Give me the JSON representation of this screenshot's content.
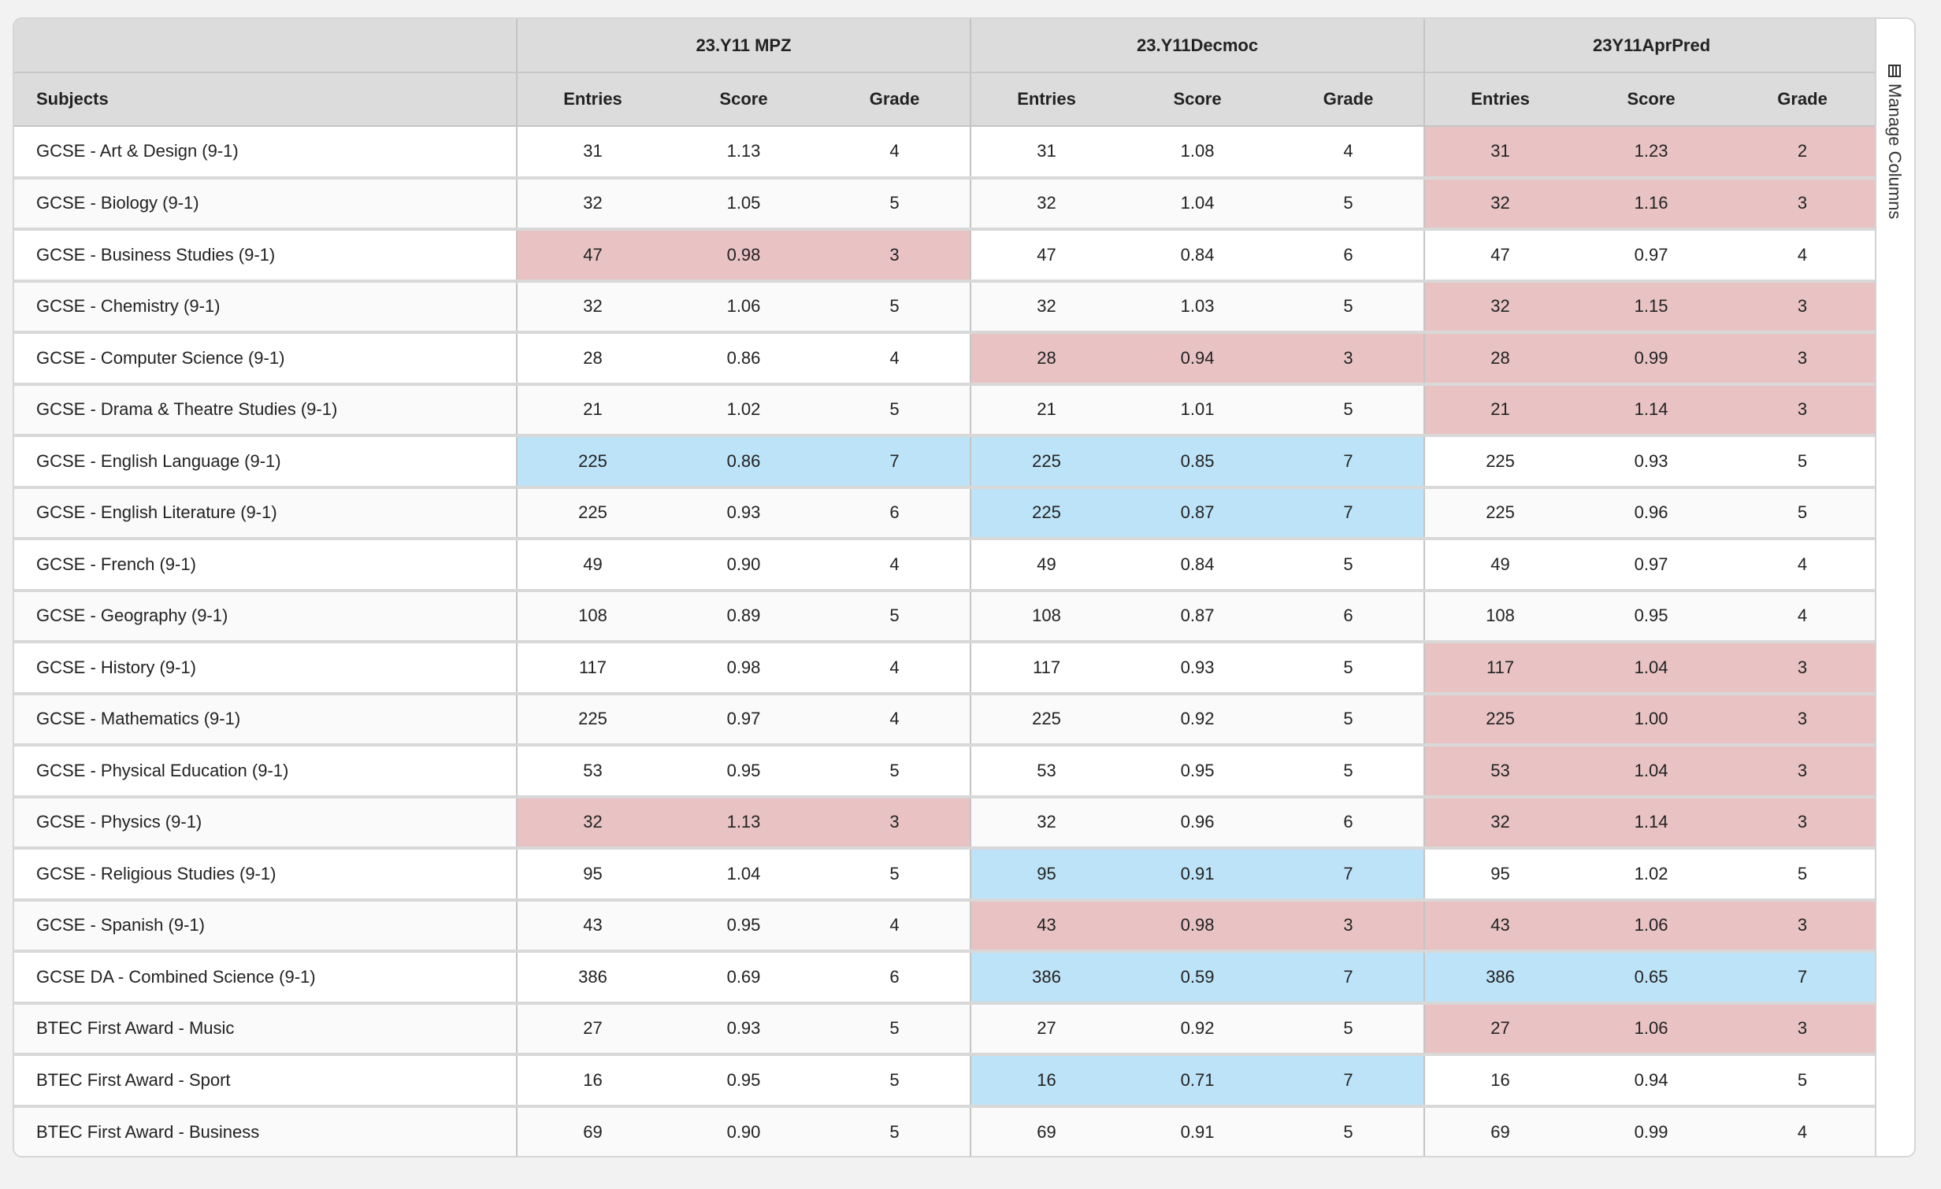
{
  "subjects_header": "Subjects",
  "groups": [
    "23.Y11 MPZ",
    "23.Y11Decmoc",
    "23Y11AprPred"
  ],
  "columns": [
    "Entries",
    "Score",
    "Grade"
  ],
  "side_panel": {
    "manage_columns_label": "Manage Columns",
    "icon": "columns-icon"
  },
  "highlight_colors": {
    "red": "#e9c3c4",
    "blue": "#bde3f8"
  },
  "rows": [
    {
      "subject": "GCSE - Art & Design (9-1)",
      "cells": [
        {
          "entries": "31",
          "score": "1.13",
          "grade": "4",
          "hl": ""
        },
        {
          "entries": "31",
          "score": "1.08",
          "grade": "4",
          "hl": ""
        },
        {
          "entries": "31",
          "score": "1.23",
          "grade": "2",
          "hl": "red"
        }
      ]
    },
    {
      "subject": "GCSE - Biology (9-1)",
      "cells": [
        {
          "entries": "32",
          "score": "1.05",
          "grade": "5",
          "hl": ""
        },
        {
          "entries": "32",
          "score": "1.04",
          "grade": "5",
          "hl": ""
        },
        {
          "entries": "32",
          "score": "1.16",
          "grade": "3",
          "hl": "red"
        }
      ]
    },
    {
      "subject": "GCSE - Business Studies (9-1)",
      "cells": [
        {
          "entries": "47",
          "score": "0.98",
          "grade": "3",
          "hl": "red"
        },
        {
          "entries": "47",
          "score": "0.84",
          "grade": "6",
          "hl": ""
        },
        {
          "entries": "47",
          "score": "0.97",
          "grade": "4",
          "hl": ""
        }
      ]
    },
    {
      "subject": "GCSE - Chemistry (9-1)",
      "cells": [
        {
          "entries": "32",
          "score": "1.06",
          "grade": "5",
          "hl": ""
        },
        {
          "entries": "32",
          "score": "1.03",
          "grade": "5",
          "hl": ""
        },
        {
          "entries": "32",
          "score": "1.15",
          "grade": "3",
          "hl": "red"
        }
      ]
    },
    {
      "subject": "GCSE - Computer Science (9-1)",
      "cells": [
        {
          "entries": "28",
          "score": "0.86",
          "grade": "4",
          "hl": ""
        },
        {
          "entries": "28",
          "score": "0.94",
          "grade": "3",
          "hl": "red"
        },
        {
          "entries": "28",
          "score": "0.99",
          "grade": "3",
          "hl": "red"
        }
      ]
    },
    {
      "subject": "GCSE - Drama & Theatre Studies (9-1)",
      "cells": [
        {
          "entries": "21",
          "score": "1.02",
          "grade": "5",
          "hl": ""
        },
        {
          "entries": "21",
          "score": "1.01",
          "grade": "5",
          "hl": ""
        },
        {
          "entries": "21",
          "score": "1.14",
          "grade": "3",
          "hl": "red"
        }
      ]
    },
    {
      "subject": "GCSE - English Language (9-1)",
      "cells": [
        {
          "entries": "225",
          "score": "0.86",
          "grade": "7",
          "hl": "blue"
        },
        {
          "entries": "225",
          "score": "0.85",
          "grade": "7",
          "hl": "blue"
        },
        {
          "entries": "225",
          "score": "0.93",
          "grade": "5",
          "hl": ""
        }
      ]
    },
    {
      "subject": "GCSE - English Literature (9-1)",
      "cells": [
        {
          "entries": "225",
          "score": "0.93",
          "grade": "6",
          "hl": ""
        },
        {
          "entries": "225",
          "score": "0.87",
          "grade": "7",
          "hl": "blue"
        },
        {
          "entries": "225",
          "score": "0.96",
          "grade": "5",
          "hl": ""
        }
      ]
    },
    {
      "subject": "GCSE - French (9-1)",
      "cells": [
        {
          "entries": "49",
          "score": "0.90",
          "grade": "4",
          "hl": ""
        },
        {
          "entries": "49",
          "score": "0.84",
          "grade": "5",
          "hl": ""
        },
        {
          "entries": "49",
          "score": "0.97",
          "grade": "4",
          "hl": ""
        }
      ]
    },
    {
      "subject": "GCSE - Geography (9-1)",
      "cells": [
        {
          "entries": "108",
          "score": "0.89",
          "grade": "5",
          "hl": ""
        },
        {
          "entries": "108",
          "score": "0.87",
          "grade": "6",
          "hl": ""
        },
        {
          "entries": "108",
          "score": "0.95",
          "grade": "4",
          "hl": ""
        }
      ]
    },
    {
      "subject": "GCSE - History (9-1)",
      "cells": [
        {
          "entries": "117",
          "score": "0.98",
          "grade": "4",
          "hl": ""
        },
        {
          "entries": "117",
          "score": "0.93",
          "grade": "5",
          "hl": ""
        },
        {
          "entries": "117",
          "score": "1.04",
          "grade": "3",
          "hl": "red"
        }
      ]
    },
    {
      "subject": "GCSE - Mathematics (9-1)",
      "cells": [
        {
          "entries": "225",
          "score": "0.97",
          "grade": "4",
          "hl": ""
        },
        {
          "entries": "225",
          "score": "0.92",
          "grade": "5",
          "hl": ""
        },
        {
          "entries": "225",
          "score": "1.00",
          "grade": "3",
          "hl": "red"
        }
      ]
    },
    {
      "subject": "GCSE - Physical Education (9-1)",
      "cells": [
        {
          "entries": "53",
          "score": "0.95",
          "grade": "5",
          "hl": ""
        },
        {
          "entries": "53",
          "score": "0.95",
          "grade": "5",
          "hl": ""
        },
        {
          "entries": "53",
          "score": "1.04",
          "grade": "3",
          "hl": "red"
        }
      ]
    },
    {
      "subject": "GCSE - Physics (9-1)",
      "cells": [
        {
          "entries": "32",
          "score": "1.13",
          "grade": "3",
          "hl": "red"
        },
        {
          "entries": "32",
          "score": "0.96",
          "grade": "6",
          "hl": ""
        },
        {
          "entries": "32",
          "score": "1.14",
          "grade": "3",
          "hl": "red"
        }
      ]
    },
    {
      "subject": "GCSE - Religious Studies (9-1)",
      "cells": [
        {
          "entries": "95",
          "score": "1.04",
          "grade": "5",
          "hl": ""
        },
        {
          "entries": "95",
          "score": "0.91",
          "grade": "7",
          "hl": "blue"
        },
        {
          "entries": "95",
          "score": "1.02",
          "grade": "5",
          "hl": ""
        }
      ]
    },
    {
      "subject": "GCSE - Spanish (9-1)",
      "cells": [
        {
          "entries": "43",
          "score": "0.95",
          "grade": "4",
          "hl": ""
        },
        {
          "entries": "43",
          "score": "0.98",
          "grade": "3",
          "hl": "red"
        },
        {
          "entries": "43",
          "score": "1.06",
          "grade": "3",
          "hl": "red"
        }
      ]
    },
    {
      "subject": "GCSE DA - Combined Science (9-1)",
      "cells": [
        {
          "entries": "386",
          "score": "0.69",
          "grade": "6",
          "hl": ""
        },
        {
          "entries": "386",
          "score": "0.59",
          "grade": "7",
          "hl": "blue"
        },
        {
          "entries": "386",
          "score": "0.65",
          "grade": "7",
          "hl": "blue"
        }
      ]
    },
    {
      "subject": "BTEC First Award - Music",
      "cells": [
        {
          "entries": "27",
          "score": "0.93",
          "grade": "5",
          "hl": ""
        },
        {
          "entries": "27",
          "score": "0.92",
          "grade": "5",
          "hl": ""
        },
        {
          "entries": "27",
          "score": "1.06",
          "grade": "3",
          "hl": "red"
        }
      ]
    },
    {
      "subject": "BTEC First Award - Sport",
      "cells": [
        {
          "entries": "16",
          "score": "0.95",
          "grade": "5",
          "hl": ""
        },
        {
          "entries": "16",
          "score": "0.71",
          "grade": "7",
          "hl": "blue"
        },
        {
          "entries": "16",
          "score": "0.94",
          "grade": "5",
          "hl": ""
        }
      ]
    },
    {
      "subject": "BTEC First Award - Business",
      "cells": [
        {
          "entries": "69",
          "score": "0.90",
          "grade": "5",
          "hl": ""
        },
        {
          "entries": "69",
          "score": "0.91",
          "grade": "5",
          "hl": ""
        },
        {
          "entries": "69",
          "score": "0.99",
          "grade": "4",
          "hl": ""
        }
      ]
    }
  ]
}
